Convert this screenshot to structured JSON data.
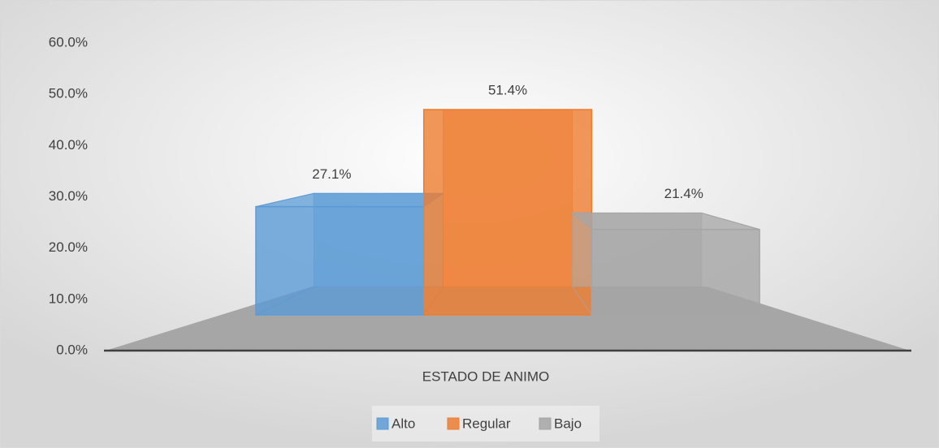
{
  "chart_data": {
    "type": "bar3d",
    "categories": [
      "ESTADO DE ANIMO"
    ],
    "series": [
      {
        "name": "Alto",
        "color": "#5b9bd5",
        "values": [
          27.1
        ],
        "value_labels": [
          "27.1%"
        ]
      },
      {
        "name": "Regular",
        "color": "#ed7d31",
        "values": [
          51.4
        ],
        "value_labels": [
          "51.4%"
        ]
      },
      {
        "name": "Bajo",
        "color": "#a5a5a5",
        "values": [
          21.4
        ],
        "value_labels": [
          "21.4%"
        ]
      }
    ],
    "ylim": [
      0,
      60
    ],
    "yticks": [
      {
        "value": 0,
        "label": "0.0%"
      },
      {
        "value": 10,
        "label": "10.0%"
      },
      {
        "value": 20,
        "label": "20.0%"
      },
      {
        "value": 30,
        "label": "30.0%"
      },
      {
        "value": 40,
        "label": "40.0%"
      },
      {
        "value": 50,
        "label": "50.0%"
      },
      {
        "value": 60,
        "label": "60.0%"
      }
    ],
    "legend": "bottom"
  }
}
